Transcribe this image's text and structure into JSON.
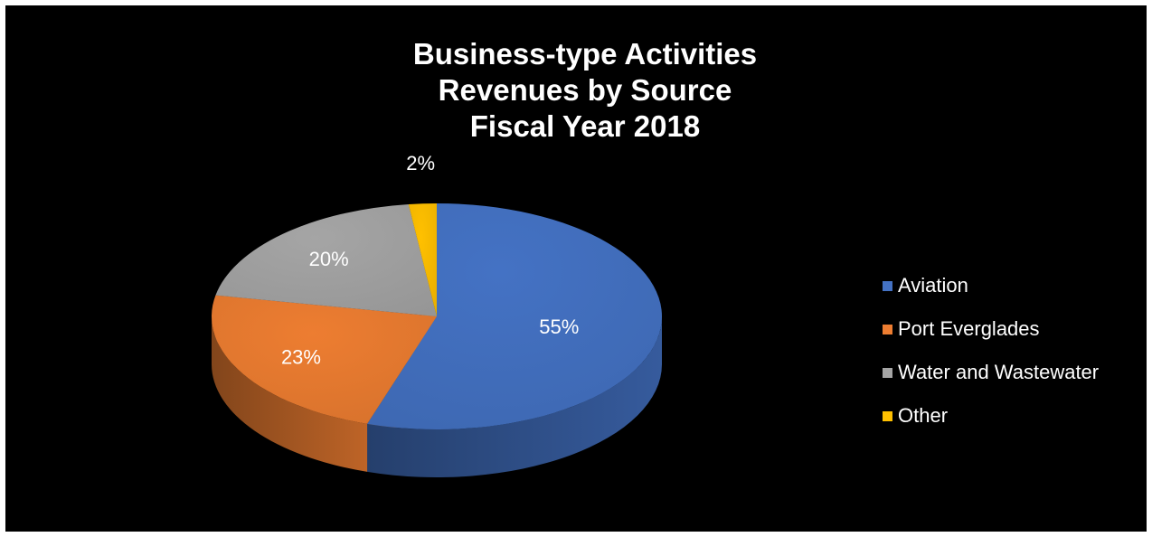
{
  "colors": {
    "background": "#000000",
    "text": "#ffffff"
  },
  "chart_data": {
    "type": "pie",
    "style": "3d",
    "title": "Business-type Activities Revenues by Source Fiscal Year 2018",
    "title_lines": [
      "Business-type Activities",
      "Revenues by Source",
      "Fiscal Year 2018"
    ],
    "legend_position": "right",
    "start_angle_deg": 90,
    "direction": "clockwise",
    "slices": [
      {
        "label": "Aviation",
        "value": 55,
        "display": "55%",
        "color": "#4472c4"
      },
      {
        "label": "Port Everglades",
        "value": 23,
        "display": "23%",
        "color": "#ed7d31"
      },
      {
        "label": "Water and Wastewater",
        "value": 20,
        "display": "20%",
        "color": "#a5a5a5"
      },
      {
        "label": "Other",
        "value": 2,
        "display": "2%",
        "color": "#ffc000"
      }
    ]
  }
}
